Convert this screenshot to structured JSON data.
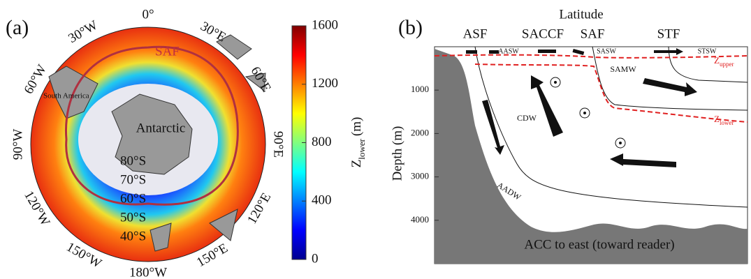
{
  "panel_a": {
    "label": "(a)",
    "longitudes": [
      "0°",
      "30°E",
      "60°E",
      "90°E",
      "120°E",
      "150°E",
      "180°W",
      "150°W",
      "120°W",
      "90°W",
      "60°W",
      "30°W"
    ],
    "latitudes": [
      "80°S",
      "70°S",
      "60°S",
      "50°S",
      "40°S"
    ],
    "front": "SAF",
    "continent": "South America",
    "antarctic": "Antarctic",
    "colorbar": {
      "label": "Z",
      "label_sub": "lower",
      "label_unit": "(m)",
      "lim": [
        0,
        1600
      ],
      "ticks": [
        0,
        400,
        800,
        1200,
        1600
      ]
    }
  },
  "panel_b": {
    "label": "(b)",
    "x_label": "Latitude",
    "y_label": "Depth (m)",
    "ylim": [
      0,
      5000
    ],
    "yticks": [
      1000,
      2000,
      3000,
      4000
    ],
    "fronts": [
      "ASF",
      "SACCF",
      "SAF",
      "STF"
    ],
    "water_masses": [
      "AASW",
      "SASW",
      "STSW",
      "SAMW",
      "CDW",
      "AADW"
    ],
    "z_upper": {
      "label": "Z",
      "sub": "upper"
    },
    "z_lower": {
      "label": "Z",
      "sub": "lower"
    },
    "caption": "ACC to east (toward reader)"
  }
}
